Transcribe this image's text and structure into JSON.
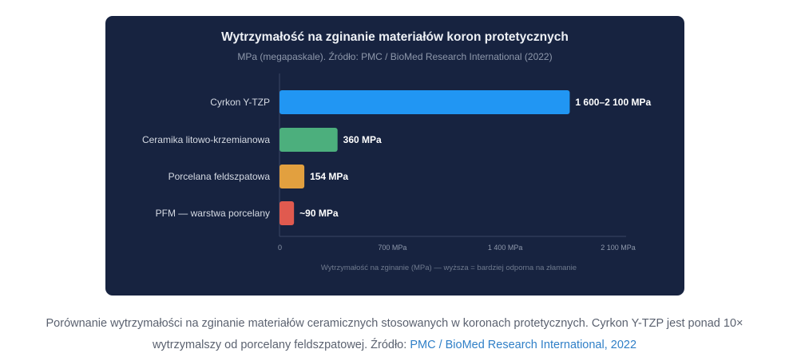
{
  "chart_data": {
    "type": "bar",
    "orientation": "horizontal",
    "title": "Wytrzymałość na zginanie materiałów koron protetycznych",
    "subtitle": "MPa (megapaskale). Źródło: PMC / BioMed Research International (2022)",
    "xlabel": "Wytrzymałość na zginanie (MPa) — wyższa = bardziej odporna na złamanie",
    "ylabel": "",
    "xlim": [
      0,
      2100
    ],
    "x_ticks": [
      0,
      700,
      1400,
      2100
    ],
    "x_tick_labels": [
      "0",
      "700 MPa",
      "1 400 MPa",
      "2 100 MPa"
    ],
    "grid": false,
    "categories": [
      "Cyrkon Y-TZP",
      "Ceramika litowo-krzemianowa",
      "Porcelana feldszpatowa",
      "PFM — warstwa porcelany"
    ],
    "values": [
      1800,
      360,
      154,
      90
    ],
    "value_labels": [
      "1 600–2 100 MPa",
      "360 MPa",
      "154 MPa",
      "~90 MPa"
    ],
    "colors": [
      "#2196f3",
      "#4caf7d",
      "#e2a03f",
      "#e05a4f"
    ]
  },
  "caption": {
    "line1": "Porównanie wytrzymałości na zginanie materiałów ceramicznych stosowanych w koronach protetycznych. Cyrkon Y-TZP jest ponad 10×",
    "line2_text": "wytrzymalszy od porcelany feldszpatowej. Źródło: ",
    "line2_link": "PMC / BioMed Research International, 2022"
  }
}
